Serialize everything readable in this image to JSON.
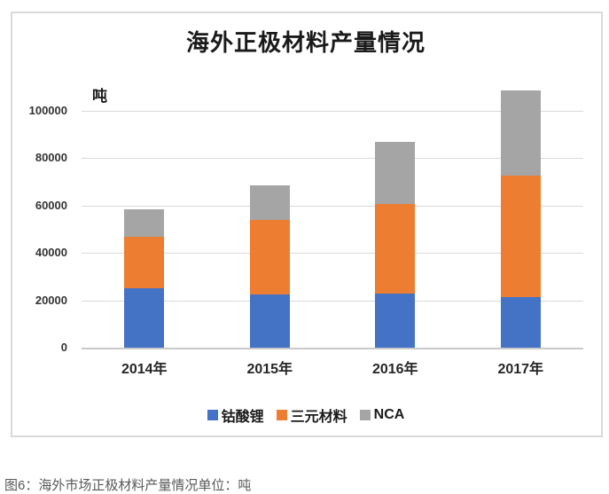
{
  "caption": "图6：海外市场正极材料产量情况单位：吨",
  "chart_data": {
    "type": "bar",
    "stacked": true,
    "title": "海外正极材料产量情况",
    "ylabel": "吨",
    "categories": [
      "2014年",
      "2015年",
      "2016年",
      "2017年"
    ],
    "series": [
      {
        "name": "钴酸锂",
        "color": "#4472C4",
        "values": [
          25000,
          22500,
          23000,
          21500
        ]
      },
      {
        "name": "三元材料",
        "color": "#ED7D31",
        "values": [
          22000,
          31500,
          37500,
          51000
        ]
      },
      {
        "name": "NCA",
        "color": "#A5A5A5",
        "values": [
          11500,
          14500,
          26500,
          36000
        ]
      }
    ],
    "ylim": [
      0,
      110000
    ],
    "yticks": [
      0,
      20000,
      40000,
      60000,
      80000,
      100000
    ],
    "grid": true,
    "legend_position": "bottom",
    "ui_colors": {
      "gridline": "#D9D9D9",
      "axis_line": "#C9C9C9",
      "panel_border": "#D9D9D9",
      "tick_text": "#333333",
      "title_text": "#1A1A1A",
      "caption_text": "#595959",
      "background": "#FFFFFF"
    }
  }
}
